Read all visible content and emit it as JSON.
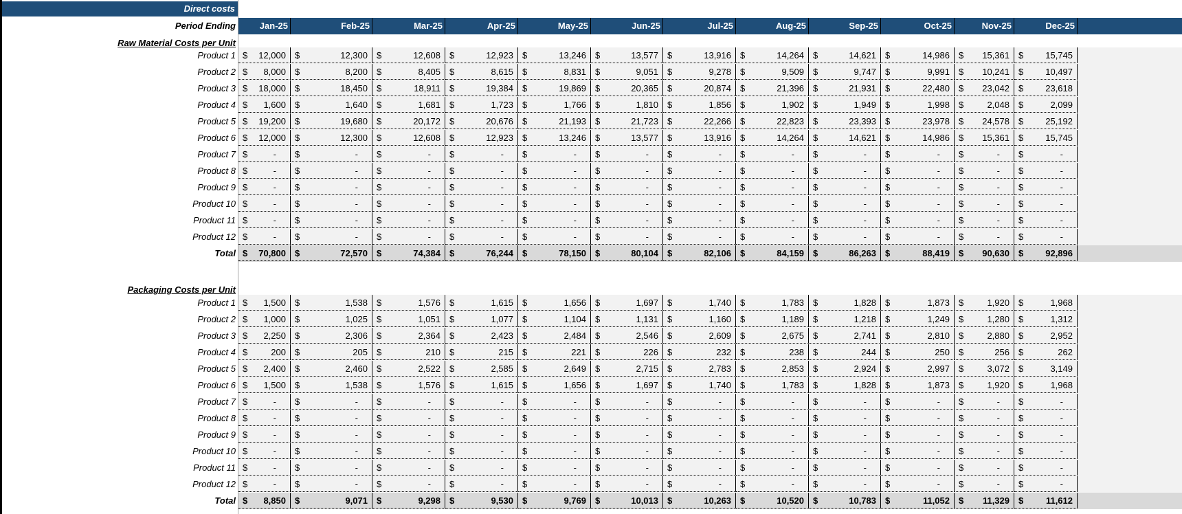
{
  "sheet": {
    "title": "Direct costs",
    "period_label": "Period Ending",
    "currency_symbol": "$",
    "months": [
      "Jan-25",
      "Feb-25",
      "Mar-25",
      "Apr-25",
      "May-25",
      "Jun-25",
      "Jul-25",
      "Aug-25",
      "Sep-25",
      "Oct-25",
      "Nov-25",
      "Dec-25"
    ],
    "colors": {
      "header_bg": "#1f4e79",
      "row_bg": "#f2f2f2",
      "total_bg": "#d9d9d9"
    }
  },
  "sections": [
    {
      "title": "Raw Material Costs per Unit",
      "rows": [
        {
          "label": "Product 1",
          "values": [
            "12,000",
            "12,300",
            "12,608",
            "12,923",
            "13,246",
            "13,577",
            "13,916",
            "14,264",
            "14,621",
            "14,986",
            "15,361",
            "15,745"
          ]
        },
        {
          "label": "Product 2",
          "values": [
            "8,000",
            "8,200",
            "8,405",
            "8,615",
            "8,831",
            "9,051",
            "9,278",
            "9,509",
            "9,747",
            "9,991",
            "10,241",
            "10,497"
          ]
        },
        {
          "label": "Product 3",
          "values": [
            "18,000",
            "18,450",
            "18,911",
            "19,384",
            "19,869",
            "20,365",
            "20,874",
            "21,396",
            "21,931",
            "22,480",
            "23,042",
            "23,618"
          ]
        },
        {
          "label": "Product 4",
          "values": [
            "1,600",
            "1,640",
            "1,681",
            "1,723",
            "1,766",
            "1,810",
            "1,856",
            "1,902",
            "1,949",
            "1,998",
            "2,048",
            "2,099"
          ]
        },
        {
          "label": "Product 5",
          "values": [
            "19,200",
            "19,680",
            "20,172",
            "20,676",
            "21,193",
            "21,723",
            "22,266",
            "22,823",
            "23,393",
            "23,978",
            "24,578",
            "25,192"
          ]
        },
        {
          "label": "Product 6",
          "values": [
            "12,000",
            "12,300",
            "12,608",
            "12,923",
            "13,246",
            "13,577",
            "13,916",
            "14,264",
            "14,621",
            "14,986",
            "15,361",
            "15,745"
          ]
        },
        {
          "label": "Product 7",
          "values": [
            "-",
            "-",
            "-",
            "-",
            "-",
            "-",
            "-",
            "-",
            "-",
            "-",
            "-",
            "-"
          ]
        },
        {
          "label": "Product 8",
          "values": [
            "-",
            "-",
            "-",
            "-",
            "-",
            "-",
            "-",
            "-",
            "-",
            "-",
            "-",
            "-"
          ]
        },
        {
          "label": "Product 9",
          "values": [
            "-",
            "-",
            "-",
            "-",
            "-",
            "-",
            "-",
            "-",
            "-",
            "-",
            "-",
            "-"
          ]
        },
        {
          "label": "Product 10",
          "values": [
            "-",
            "-",
            "-",
            "-",
            "-",
            "-",
            "-",
            "-",
            "-",
            "-",
            "-",
            "-"
          ]
        },
        {
          "label": "Product 11",
          "values": [
            "-",
            "-",
            "-",
            "-",
            "-",
            "-",
            "-",
            "-",
            "-",
            "-",
            "-",
            "-"
          ]
        },
        {
          "label": "Product 12",
          "values": [
            "-",
            "-",
            "-",
            "-",
            "-",
            "-",
            "-",
            "-",
            "-",
            "-",
            "-",
            "-"
          ]
        }
      ],
      "total": {
        "label": "Total",
        "values": [
          "70,800",
          "72,570",
          "74,384",
          "76,244",
          "78,150",
          "80,104",
          "82,106",
          "84,159",
          "86,263",
          "88,419",
          "90,630",
          "92,896"
        ]
      }
    },
    {
      "title": "Packaging Costs per Unit",
      "rows": [
        {
          "label": "Product 1",
          "values": [
            "1,500",
            "1,538",
            "1,576",
            "1,615",
            "1,656",
            "1,697",
            "1,740",
            "1,783",
            "1,828",
            "1,873",
            "1,920",
            "1,968"
          ]
        },
        {
          "label": "Product 2",
          "values": [
            "1,000",
            "1,025",
            "1,051",
            "1,077",
            "1,104",
            "1,131",
            "1,160",
            "1,189",
            "1,218",
            "1,249",
            "1,280",
            "1,312"
          ]
        },
        {
          "label": "Product 3",
          "values": [
            "2,250",
            "2,306",
            "2,364",
            "2,423",
            "2,484",
            "2,546",
            "2,609",
            "2,675",
            "2,741",
            "2,810",
            "2,880",
            "2,952"
          ]
        },
        {
          "label": "Product 4",
          "values": [
            "200",
            "205",
            "210",
            "215",
            "221",
            "226",
            "232",
            "238",
            "244",
            "250",
            "256",
            "262"
          ]
        },
        {
          "label": "Product 5",
          "values": [
            "2,400",
            "2,460",
            "2,522",
            "2,585",
            "2,649",
            "2,715",
            "2,783",
            "2,853",
            "2,924",
            "2,997",
            "3,072",
            "3,149"
          ]
        },
        {
          "label": "Product 6",
          "values": [
            "1,500",
            "1,538",
            "1,576",
            "1,615",
            "1,656",
            "1,697",
            "1,740",
            "1,783",
            "1,828",
            "1,873",
            "1,920",
            "1,968"
          ]
        },
        {
          "label": "Product 7",
          "values": [
            "-",
            "-",
            "-",
            "-",
            "-",
            "-",
            "-",
            "-",
            "-",
            "-",
            "-",
            "-"
          ]
        },
        {
          "label": "Product 8",
          "values": [
            "-",
            "-",
            "-",
            "-",
            "-",
            "-",
            "-",
            "-",
            "-",
            "-",
            "-",
            "-"
          ]
        },
        {
          "label": "Product 9",
          "values": [
            "-",
            "-",
            "-",
            "-",
            "-",
            "-",
            "-",
            "-",
            "-",
            "-",
            "-",
            "-"
          ]
        },
        {
          "label": "Product 10",
          "values": [
            "-",
            "-",
            "-",
            "-",
            "-",
            "-",
            "-",
            "-",
            "-",
            "-",
            "-",
            "-"
          ]
        },
        {
          "label": "Product 11",
          "values": [
            "-",
            "-",
            "-",
            "-",
            "-",
            "-",
            "-",
            "-",
            "-",
            "-",
            "-",
            "-"
          ]
        },
        {
          "label": "Product 12",
          "values": [
            "-",
            "-",
            "-",
            "-",
            "-",
            "-",
            "-",
            "-",
            "-",
            "-",
            "-",
            "-"
          ]
        }
      ],
      "total": {
        "label": "Total",
        "values": [
          "8,850",
          "9,071",
          "9,298",
          "9,530",
          "9,769",
          "10,013",
          "10,263",
          "10,520",
          "10,783",
          "11,052",
          "11,329",
          "11,612"
        ]
      }
    }
  ]
}
